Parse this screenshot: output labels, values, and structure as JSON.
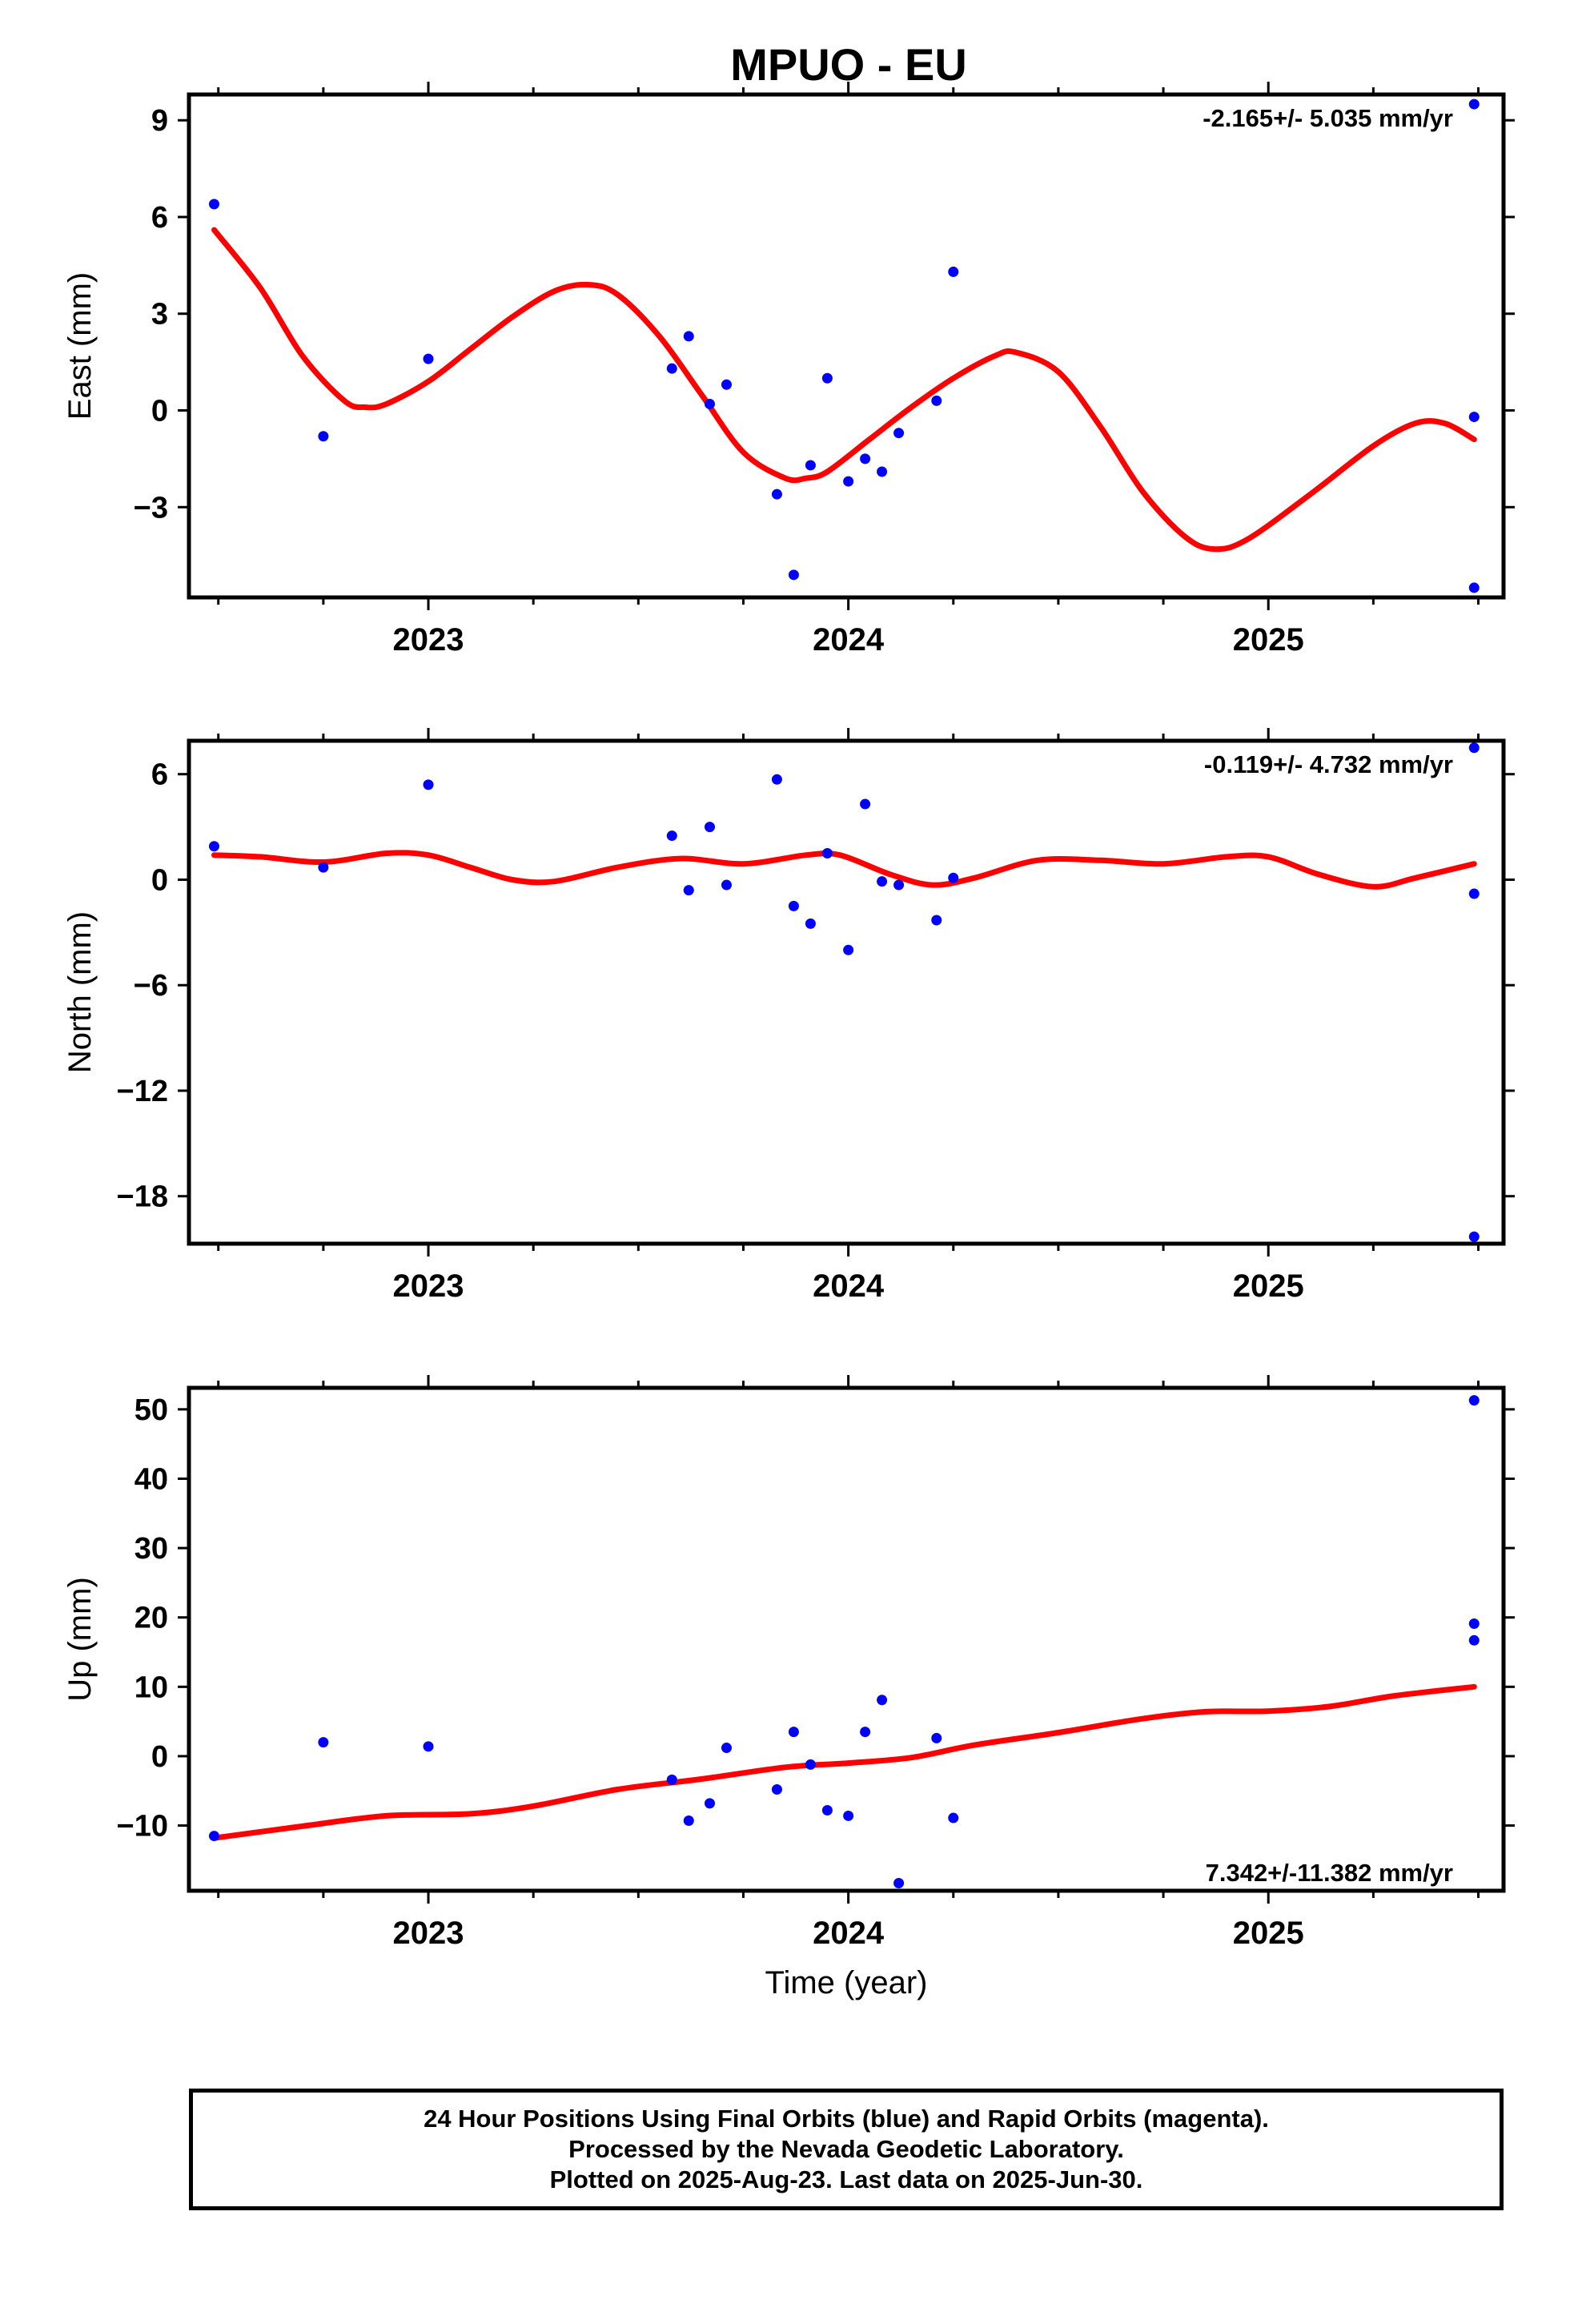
{
  "figure_title": "MPUO - EU",
  "footer": {
    "line1": "24 Hour Positions Using Final Orbits (blue) and Rapid Orbits (magenta).",
    "line2": "Processed by the Nevada Geodetic Laboratory.",
    "line3": "Plotted on 2025-Aug-23. Last data on 2025-Jun-30."
  },
  "colors": {
    "data_points": "#0000ff",
    "model_curve": "#ff0000",
    "frame": "#000000"
  },
  "chart_data": [
    {
      "type": "scatter",
      "id": "east",
      "title": "MPUO - EU",
      "ylabel": "East (mm)",
      "xlabel": "",
      "xlim": [
        2022.43,
        2025.56
      ],
      "ylim": [
        -5.8,
        9.8
      ],
      "yticks": [
        9,
        6,
        3,
        0,
        -3
      ],
      "ytick_labels": [
        "9",
        "6",
        "3",
        "0",
        "−3"
      ],
      "xticks": [
        2023,
        2024,
        2025
      ],
      "xtick_labels": [
        "2023",
        "2024",
        "2025"
      ],
      "rate_label": "-2.165+/- 5.035 mm/yr",
      "rate_position": "top-right",
      "grid": false,
      "points": {
        "x": [
          2022.49,
          2022.75,
          2023.0,
          2023.58,
          2023.62,
          2023.67,
          2023.71,
          2023.83,
          2023.87,
          2023.91,
          2023.95,
          2024.0,
          2024.04,
          2024.08,
          2024.12,
          2024.21,
          2024.25,
          2025.49,
          2025.49,
          2025.49
        ],
        "y": [
          6.4,
          -0.8,
          1.6,
          1.3,
          2.3,
          0.2,
          0.8,
          -2.6,
          -5.1,
          -1.7,
          1.0,
          -2.2,
          -1.5,
          -1.9,
          -0.7,
          0.3,
          4.3,
          9.5,
          -0.2,
          -5.5
        ]
      },
      "model": {
        "x": [
          2022.49,
          2022.6,
          2022.7,
          2022.8,
          2022.85,
          2022.9,
          2023.0,
          2023.1,
          2023.2,
          2023.3,
          2023.38,
          2023.45,
          2023.55,
          2023.65,
          2023.75,
          2023.85,
          2023.9,
          2023.95,
          2024.05,
          2024.15,
          2024.25,
          2024.35,
          2024.4,
          2024.5,
          2024.6,
          2024.7,
          2024.8,
          2024.87,
          2024.95,
          2025.1,
          2025.25,
          2025.35,
          2025.42,
          2025.49
        ],
        "y": [
          5.6,
          3.8,
          1.7,
          0.3,
          0.1,
          0.2,
          0.9,
          1.9,
          2.9,
          3.7,
          3.9,
          3.6,
          2.3,
          0.5,
          -1.3,
          -2.1,
          -2.1,
          -1.9,
          -0.9,
          0.1,
          1.0,
          1.7,
          1.8,
          1.2,
          -0.5,
          -2.5,
          -3.9,
          -4.3,
          -4.0,
          -2.6,
          -1.1,
          -0.4,
          -0.4,
          -0.9
        ]
      }
    },
    {
      "type": "scatter",
      "id": "north",
      "ylabel": "North (mm)",
      "xlabel": "",
      "xlim": [
        2022.43,
        2025.56
      ],
      "ylim": [
        -20.7,
        7.9
      ],
      "yticks": [
        6,
        0,
        -6,
        -12,
        -18
      ],
      "ytick_labels": [
        "6",
        "0",
        "−6",
        "−12",
        "−18"
      ],
      "xticks": [
        2023,
        2024,
        2025
      ],
      "xtick_labels": [
        "2023",
        "2024",
        "2025"
      ],
      "rate_label": "-0.119+/- 4.732 mm/yr",
      "rate_position": "top-right",
      "grid": false,
      "points": {
        "x": [
          2022.49,
          2022.75,
          2023.0,
          2023.58,
          2023.62,
          2023.67,
          2023.71,
          2023.83,
          2023.87,
          2023.91,
          2023.95,
          2024.0,
          2024.04,
          2024.08,
          2024.12,
          2024.21,
          2024.25,
          2025.49,
          2025.49,
          2025.49
        ],
        "y": [
          1.9,
          0.7,
          5.4,
          2.5,
          -0.6,
          3.0,
          -0.3,
          5.7,
          -1.5,
          -2.5,
          1.5,
          -4.0,
          4.3,
          -0.1,
          -0.3,
          -2.3,
          0.1,
          7.5,
          -0.8,
          -20.3
        ]
      },
      "model": {
        "x": [
          2022.49,
          2022.6,
          2022.75,
          2022.9,
          2023.0,
          2023.1,
          2023.2,
          2023.3,
          2023.45,
          2023.6,
          2023.75,
          2023.9,
          2023.98,
          2024.1,
          2024.2,
          2024.3,
          2024.45,
          2024.6,
          2024.75,
          2024.9,
          2025.0,
          2025.12,
          2025.25,
          2025.35,
          2025.49
        ],
        "y": [
          1.4,
          1.3,
          1.0,
          1.5,
          1.4,
          0.7,
          0.0,
          -0.1,
          0.7,
          1.2,
          0.9,
          1.4,
          1.4,
          0.3,
          -0.3,
          0.1,
          1.1,
          1.1,
          0.9,
          1.3,
          1.3,
          0.3,
          -0.4,
          0.1,
          0.9
        ]
      }
    },
    {
      "type": "scatter",
      "id": "up",
      "ylabel": "Up (mm)",
      "xlabel": "Time (year)",
      "xlim": [
        2022.43,
        2025.56
      ],
      "ylim": [
        -19.4,
        53.1
      ],
      "yticks": [
        50,
        40,
        30,
        20,
        10,
        0,
        -10
      ],
      "ytick_labels": [
        "50",
        "40",
        "30",
        "20",
        "10",
        "0",
        "−10"
      ],
      "xticks": [
        2023,
        2024,
        2025
      ],
      "xtick_labels": [
        "2023",
        "2024",
        "2025"
      ],
      "rate_label": "7.342+/-11.382 mm/yr",
      "rate_position": "bottom-right",
      "grid": false,
      "points": {
        "x": [
          2022.49,
          2022.75,
          2023.0,
          2023.58,
          2023.62,
          2023.67,
          2023.71,
          2023.83,
          2023.87,
          2023.91,
          2023.95,
          2024.0,
          2024.04,
          2024.08,
          2024.12,
          2024.21,
          2024.25,
          2025.49,
          2025.49,
          2025.49
        ],
        "y": [
          -11.5,
          2.0,
          1.4,
          -3.4,
          -9.3,
          -6.8,
          1.2,
          -4.8,
          3.5,
          -1.2,
          -7.8,
          -8.6,
          3.5,
          8.1,
          -18.3,
          2.6,
          -8.9,
          51.3,
          19.1,
          16.7
        ]
      },
      "model": {
        "x": [
          2022.49,
          2022.7,
          2022.9,
          2023.1,
          2023.25,
          2023.45,
          2023.65,
          2023.85,
          2024.0,
          2024.15,
          2024.3,
          2024.5,
          2024.7,
          2024.85,
          2025.0,
          2025.15,
          2025.3,
          2025.49
        ],
        "y": [
          -11.8,
          -10.1,
          -8.6,
          -8.3,
          -7.2,
          -4.8,
          -3.3,
          -1.6,
          -1.0,
          -0.2,
          1.6,
          3.4,
          5.4,
          6.4,
          6.5,
          7.2,
          8.7,
          10.0
        ]
      }
    }
  ]
}
